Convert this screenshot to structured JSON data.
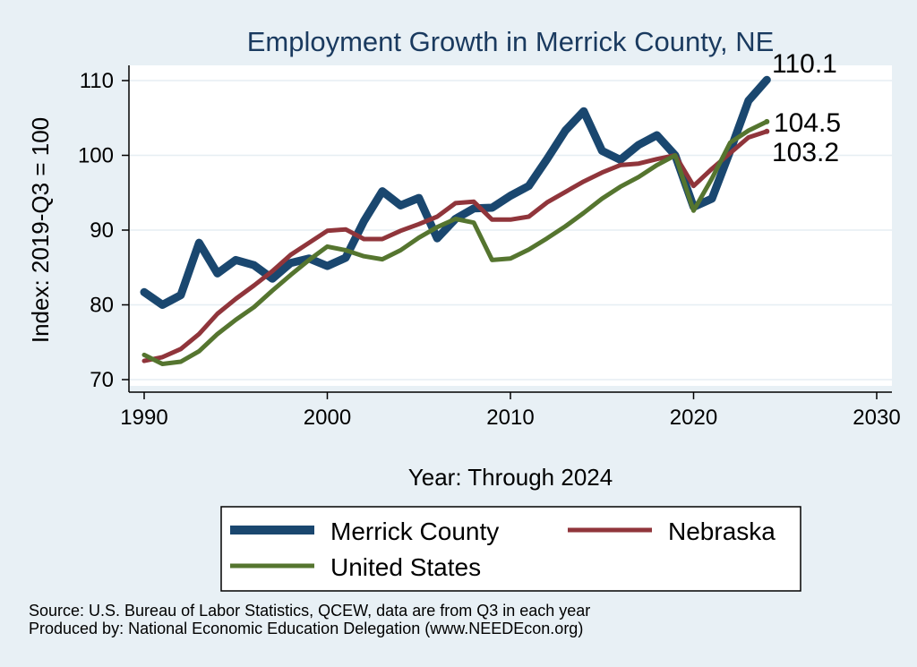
{
  "chart_data": {
    "type": "line",
    "title": "Employment Growth in Merrick County, NE",
    "xlabel": "Year: Through 2024",
    "ylabel": "Index: 2019-Q3 = 100",
    "xlim": [
      1990,
      2030
    ],
    "ylim": [
      70,
      110
    ],
    "x_ticks": [
      1990,
      2000,
      2010,
      2020,
      2030
    ],
    "y_ticks": [
      70,
      80,
      90,
      100,
      110
    ],
    "grid": true,
    "x": [
      1990,
      1991,
      1992,
      1993,
      1994,
      1995,
      1996,
      1997,
      1998,
      1999,
      2000,
      2001,
      2002,
      2003,
      2004,
      2005,
      2006,
      2007,
      2008,
      2009,
      2010,
      2011,
      2012,
      2013,
      2014,
      2015,
      2016,
      2017,
      2018,
      2019,
      2020,
      2021,
      2022,
      2023,
      2024
    ],
    "series": [
      {
        "name": "Merrick  County",
        "color": "#1a476f",
        "values": [
          81.7,
          80.0,
          81.3,
          88.3,
          84.2,
          86.0,
          85.3,
          83.5,
          85.6,
          86.2,
          85.2,
          86.3,
          91.2,
          95.2,
          93.3,
          94.3,
          88.9,
          91.5,
          92.9,
          93.0,
          94.6,
          95.9,
          99.5,
          103.3,
          105.9,
          100.6,
          99.4,
          101.4,
          102.7,
          100.0,
          93.1,
          94.2,
          100.6,
          107.3,
          110.1
        ],
        "end_label": "110.1"
      },
      {
        "name": "Nebraska",
        "color": "#90353b",
        "values": [
          72.5,
          73.0,
          74.1,
          76.1,
          78.8,
          80.8,
          82.6,
          84.5,
          86.7,
          88.3,
          89.9,
          90.1,
          88.8,
          88.8,
          89.9,
          90.8,
          91.8,
          93.6,
          93.8,
          91.4,
          91.4,
          91.8,
          93.7,
          95.1,
          96.5,
          97.7,
          98.7,
          98.9,
          99.5,
          100.0,
          95.9,
          98.2,
          100.3,
          102.4,
          103.2
        ],
        "end_label": "103.2"
      },
      {
        "name": "United States",
        "color": "#55752f",
        "values": [
          73.3,
          72.1,
          72.4,
          73.8,
          76.1,
          78.0,
          79.7,
          81.9,
          84.0,
          86.0,
          87.8,
          87.3,
          86.5,
          86.1,
          87.3,
          89.0,
          90.4,
          91.5,
          91.0,
          86.0,
          86.2,
          87.4,
          88.9,
          90.5,
          92.3,
          94.2,
          95.8,
          97.1,
          98.7,
          100.0,
          92.6,
          96.9,
          101.7,
          103.3,
          104.5
        ],
        "end_label": "104.5"
      }
    ],
    "legend": {
      "placement": "bottom",
      "entries": [
        "Merrick  County",
        "Nebraska",
        "United States"
      ]
    }
  },
  "source_note": "Source: U.S. Bureau of Labor Statistics, QCEW, data are from Q3 in each year",
  "producer_note": "Produced by: National Economic Education Delegation (www.NEEDEcon.org)"
}
